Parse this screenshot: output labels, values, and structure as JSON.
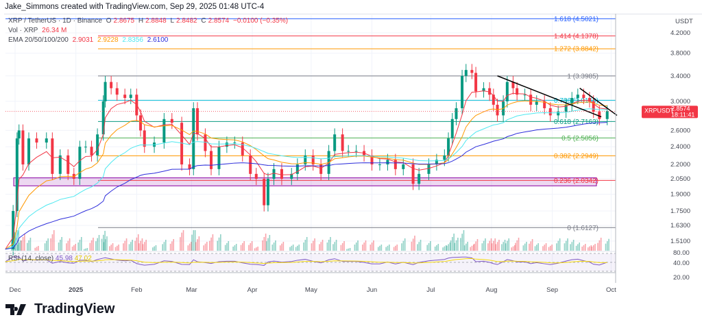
{
  "credit": "Jake_Simmons created with TradingView.com, Sep 29, 2025 01:48 UTC-4",
  "legend": {
    "symbol": "XRP / TetherUS · 1D · Binance",
    "o_label": "O",
    "o": "2.8675",
    "h_label": "H",
    "h": "2.8848",
    "l_label": "L",
    "l": "2.8482",
    "c_label": "C",
    "c": "2.8574",
    "change": "−0.0100 (−0.35%)",
    "vol_label": "Vol · XRP",
    "vol": "26.34 M",
    "ema_label": "EMA 20/50/100/200",
    "ema20": "2.9031",
    "ema50": "2.9228",
    "ema100": "2.8356",
    "ema200": "2.6100",
    "rsi_label": "RSI (14, close)",
    "rsi": "45.98",
    "rsi_ma": "47.02"
  },
  "colors": {
    "up": "#089981",
    "down": "#f23645",
    "ema20": "#f23645",
    "ema50": "#ff9800",
    "ema100": "#4de8f0",
    "ema200": "#2c2cdb",
    "rsi": "#7e57c2",
    "rsi_ma": "#f5d90a"
  },
  "price_tag": {
    "symbol": "XRPUSDT",
    "price": "2.8574",
    "countdown": "18:11:41"
  },
  "logo": "TradingView",
  "chart_data": {
    "type": "candlestick",
    "y_scale": "log",
    "ylabel": "USDT",
    "y_ticks": [
      "4.2000",
      "3.8000",
      "3.4000",
      "3.0000",
      "2.6000",
      "2.4000",
      "2.2000",
      "2.0500",
      "1.9000",
      "1.7500",
      "1.6300",
      "1.5100"
    ],
    "rsi_ticks": [
      "80.00",
      "40.00",
      "20.00"
    ],
    "x_ticks": [
      {
        "label": "Dec",
        "date": "2024-12-01"
      },
      {
        "label": "2025",
        "date": "2025-01-01"
      },
      {
        "label": "Feb",
        "date": "2025-02-01"
      },
      {
        "label": "Mar",
        "date": "2025-03-01"
      },
      {
        "label": "Apr",
        "date": "2025-04-01"
      },
      {
        "label": "May",
        "date": "2025-05-01"
      },
      {
        "label": "Jun",
        "date": "2025-06-01"
      },
      {
        "label": "Jul",
        "date": "2025-07-01"
      },
      {
        "label": "Aug",
        "date": "2025-08-01"
      },
      {
        "label": "Sep",
        "date": "2025-09-01"
      },
      {
        "label": "Oct",
        "date": "2025-10-01"
      }
    ],
    "closes": [
      [
        "2024-11-26",
        1.45
      ],
      [
        "2024-11-30",
        1.75
      ],
      [
        "2024-12-02",
        2.5
      ],
      [
        "2024-12-03",
        2.6
      ],
      [
        "2024-12-05",
        2.2
      ],
      [
        "2024-12-08",
        2.5
      ],
      [
        "2024-12-12",
        2.45
      ],
      [
        "2024-12-17",
        2.5
      ],
      [
        "2024-12-20",
        2.1
      ],
      [
        "2024-12-24",
        2.3
      ],
      [
        "2024-12-28",
        2.1
      ],
      [
        "2024-12-31",
        2.05
      ],
      [
        "2025-01-03",
        2.4
      ],
      [
        "2025-01-06",
        2.4
      ],
      [
        "2025-01-09",
        2.3
      ],
      [
        "2025-01-12",
        2.55
      ],
      [
        "2025-01-15",
        3.0
      ],
      [
        "2025-01-16",
        3.3
      ],
      [
        "2025-01-19",
        3.2
      ],
      [
        "2025-01-22",
        3.1
      ],
      [
        "2025-01-26",
        3.05
      ],
      [
        "2025-01-29",
        3.1
      ],
      [
        "2025-02-01",
        2.8
      ],
      [
        "2025-02-03",
        2.6
      ],
      [
        "2025-02-05",
        2.4
      ],
      [
        "2025-02-10",
        2.45
      ],
      [
        "2025-02-15",
        2.75
      ],
      [
        "2025-02-19",
        2.7
      ],
      [
        "2025-02-24",
        2.2
      ],
      [
        "2025-02-28",
        2.15
      ],
      [
        "2025-03-02",
        2.9
      ],
      [
        "2025-03-04",
        2.55
      ],
      [
        "2025-03-08",
        2.35
      ],
      [
        "2025-03-11",
        2.15
      ],
      [
        "2025-03-15",
        2.4
      ],
      [
        "2025-03-19",
        2.45
      ],
      [
        "2025-03-23",
        2.45
      ],
      [
        "2025-03-27",
        2.3
      ],
      [
        "2025-03-31",
        2.1
      ],
      [
        "2025-04-03",
        2.05
      ],
      [
        "2025-04-07",
        1.8
      ],
      [
        "2025-04-09",
        2.05
      ],
      [
        "2025-04-12",
        2.15
      ],
      [
        "2025-04-16",
        2.05
      ],
      [
        "2025-04-21",
        2.1
      ],
      [
        "2025-04-24",
        2.2
      ],
      [
        "2025-04-28",
        2.3
      ],
      [
        "2025-05-02",
        2.2
      ],
      [
        "2025-05-06",
        2.1
      ],
      [
        "2025-05-10",
        2.35
      ],
      [
        "2025-05-13",
        2.55
      ],
      [
        "2025-05-17",
        2.35
      ],
      [
        "2025-05-20",
        2.35
      ],
      [
        "2025-05-24",
        2.35
      ],
      [
        "2025-05-28",
        2.3
      ],
      [
        "2025-06-01",
        2.2
      ],
      [
        "2025-06-05",
        2.2
      ],
      [
        "2025-06-09",
        2.25
      ],
      [
        "2025-06-13",
        2.15
      ],
      [
        "2025-06-17",
        2.2
      ],
      [
        "2025-06-22",
        2.0
      ],
      [
        "2025-06-25",
        2.1
      ],
      [
        "2025-06-30",
        2.2
      ],
      [
        "2025-07-04",
        2.25
      ],
      [
        "2025-07-08",
        2.3
      ],
      [
        "2025-07-10",
        2.5
      ],
      [
        "2025-07-12",
        2.75
      ],
      [
        "2025-07-14",
        2.9
      ],
      [
        "2025-07-17",
        3.4
      ],
      [
        "2025-07-19",
        3.5
      ],
      [
        "2025-07-22",
        3.45
      ],
      [
        "2025-07-24",
        3.15
      ],
      [
        "2025-07-28",
        3.2
      ],
      [
        "2025-07-31",
        3.1
      ],
      [
        "2025-08-02",
        2.95
      ],
      [
        "2025-08-04",
        2.8
      ],
      [
        "2025-08-07",
        3.0
      ],
      [
        "2025-08-09",
        3.3
      ],
      [
        "2025-08-12",
        3.2
      ],
      [
        "2025-08-14",
        3.1
      ],
      [
        "2025-08-18",
        3.1
      ],
      [
        "2025-08-21",
        2.95
      ],
      [
        "2025-08-24",
        3.0
      ],
      [
        "2025-08-28",
        2.9
      ],
      [
        "2025-08-31",
        2.8
      ],
      [
        "2025-09-04",
        2.85
      ],
      [
        "2025-09-08",
        2.95
      ],
      [
        "2025-09-11",
        3.05
      ],
      [
        "2025-09-14",
        3.1
      ],
      [
        "2025-09-17",
        3.05
      ],
      [
        "2025-09-20",
        3.0
      ],
      [
        "2025-09-22",
        2.85
      ],
      [
        "2025-09-25",
        2.75
      ],
      [
        "2025-09-29",
        2.8574
      ]
    ],
    "fib_levels": [
      {
        "label": "1.618 (4.5021)",
        "price": 4.5021,
        "color": "#2962ff"
      },
      {
        "label": "1.414 (4.1378)",
        "price": 4.1378,
        "color": "#f23645"
      },
      {
        "label": "1.272 (3.8842)",
        "price": 3.8842,
        "color": "#ff9800"
      },
      {
        "label": "1 (3.3985)",
        "price": 3.3985,
        "color": "#787b86"
      },
      {
        "label": "0.786 (3.0164)",
        "price": 3.0164,
        "color": "#00bcd4"
      },
      {
        "label": "0.618 (2.7163)",
        "price": 2.7163,
        "color": "#089981"
      },
      {
        "label": "0.5 (2.5056)",
        "price": 2.5056,
        "color": "#4caf50"
      },
      {
        "label": "0.382 (2.2949)",
        "price": 2.2949,
        "color": "#ff9800"
      },
      {
        "label": "0.236 (2.0342)",
        "price": 2.0342,
        "color": "#f23645"
      },
      {
        "label": "0 (1.6127)",
        "price": 1.6127,
        "color": "#787b86"
      }
    ],
    "zone": {
      "from": 1.98,
      "to": 2.06,
      "color": "#9c27b0"
    },
    "trendlines": [
      {
        "from": [
          "2025-08-04",
          3.4
        ],
        "to": [
          "2025-09-26",
          2.78
        ]
      },
      {
        "from": [
          "2025-09-15",
          3.2
        ],
        "to": [
          "2025-10-04",
          2.8
        ]
      }
    ]
  }
}
